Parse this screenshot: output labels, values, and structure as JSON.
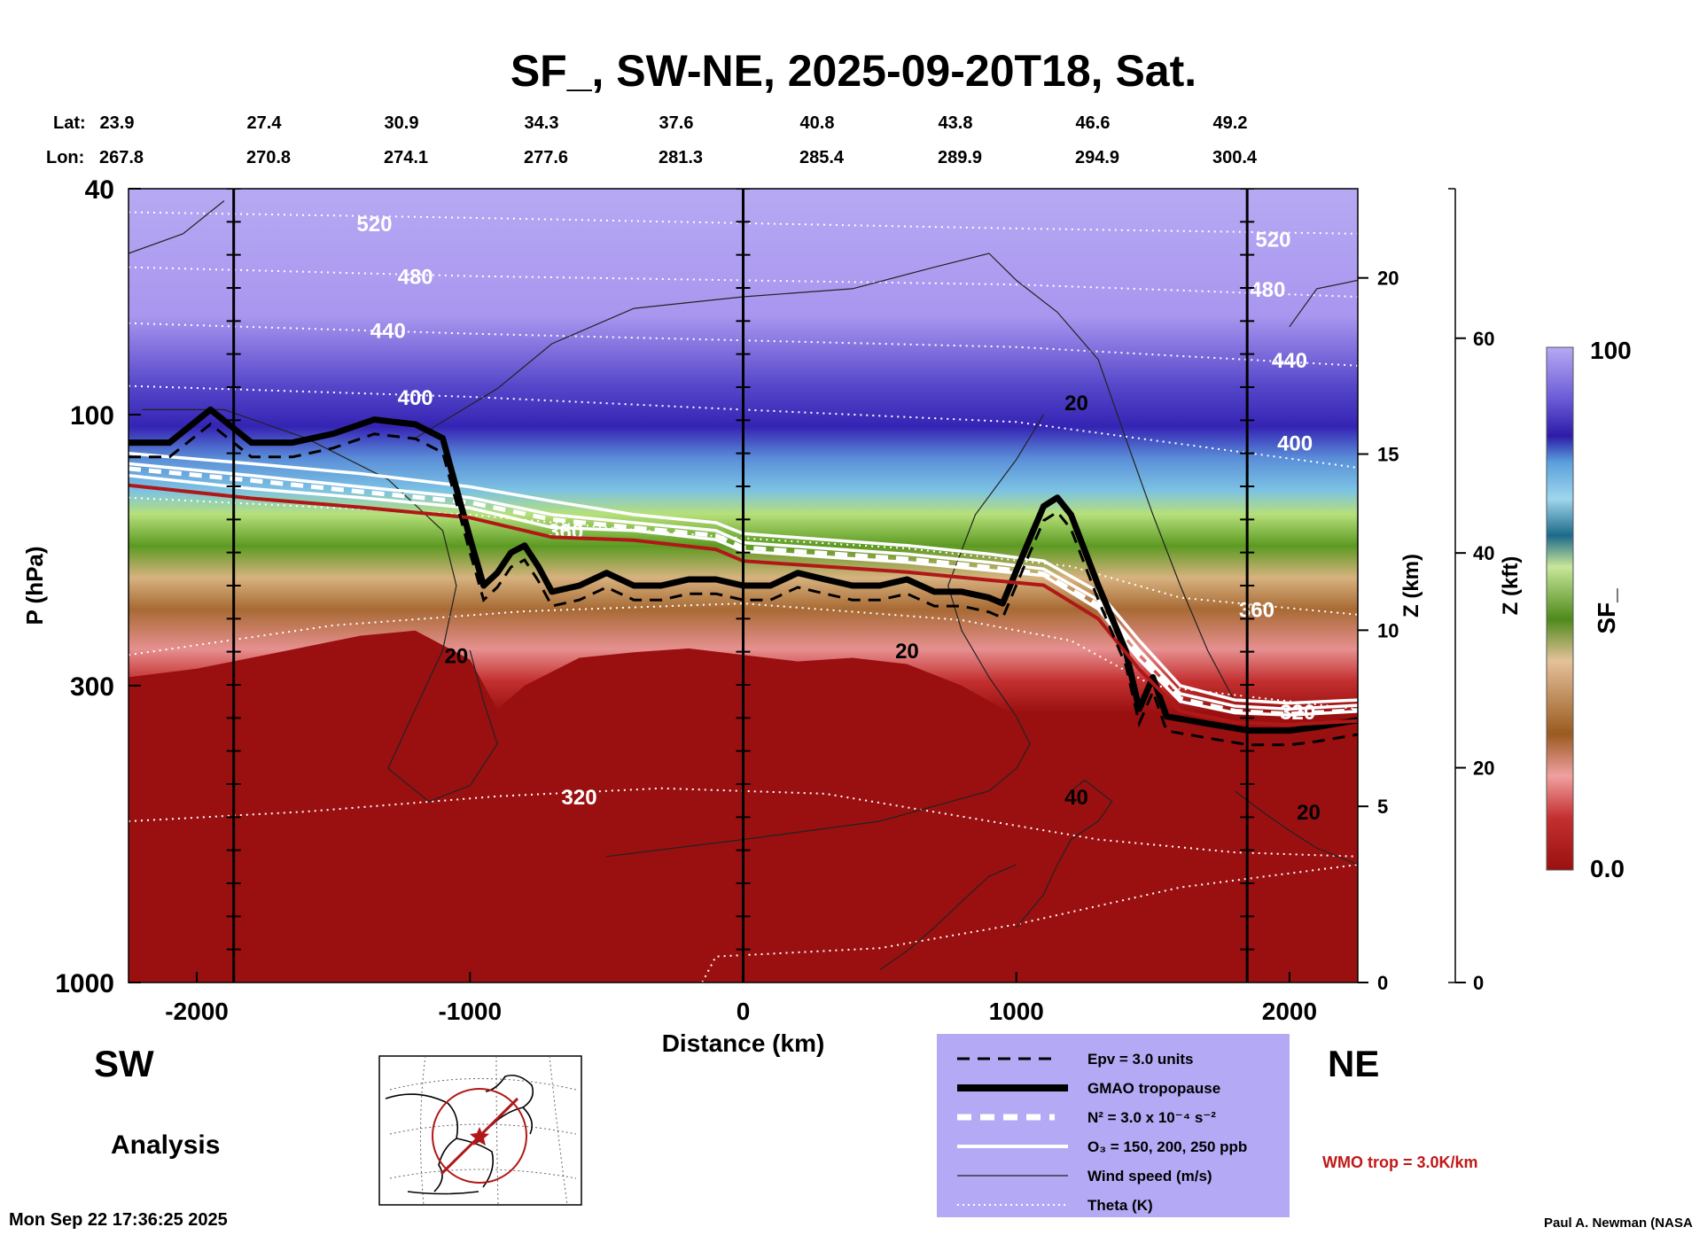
{
  "title": "SF_, SW-NE, 2025-09-20T18, Sat.",
  "lat_label": "Lat:",
  "lon_label": "Lon:",
  "lat_values": [
    "23.9",
    "27.4",
    "30.9",
    "34.3",
    "37.6",
    "40.8",
    "43.8",
    "46.6",
    "49.2"
  ],
  "lon_values": [
    "267.8",
    "270.8",
    "274.1",
    "277.6",
    "281.3",
    "285.4",
    "289.9",
    "294.9",
    "300.4"
  ],
  "dir_left": "SW",
  "dir_right": "NE",
  "analysis_label": "Analysis",
  "timestamp": "Mon Sep 22 17:36:25 2025",
  "credit": "Paul A. Newman (NASA",
  "wmo_note": "WMO trop = 3.0K/km",
  "colorbar": {
    "max_label": "100",
    "min_label": "0.0",
    "title": "SF_"
  },
  "legend": {
    "epv": "Epv = 3.0 units",
    "tropopause": "GMAO tropopause",
    "n2": "N² = 3.0 x 10⁻⁴ s⁻²",
    "o3": "O₃ = 150, 200, 250 ppb",
    "wind": "Wind speed (m/s)",
    "theta": "Theta (K)"
  },
  "colors": {
    "legend_bg": "#b3a9f5",
    "trop_red": "#b01818",
    "wmo_red": "#c01818",
    "surface_red": "#9a1010"
  },
  "chart_data": {
    "type": "heatmap",
    "title": "SF_, SW-NE, 2025-09-20T18, Sat.",
    "xlabel": "Distance (km)",
    "ylabel": "P (hPa)",
    "y2label": "Z (km)",
    "y3label": "Z (kft)",
    "xlim": [
      -2250,
      2250
    ],
    "ylim": [
      1000,
      40
    ],
    "yscale": "log",
    "x_ticks": [
      -2000,
      -1000,
      0,
      1000,
      2000
    ],
    "y_ticks": [
      40,
      100,
      300,
      1000
    ],
    "z_km_ticks": [
      0,
      5,
      10,
      15,
      20
    ],
    "z_kft_ticks": [
      0,
      20,
      40,
      60
    ],
    "colorbar_range": [
      0.0,
      100
    ],
    "theta_labels": [
      "520",
      "480",
      "440",
      "400",
      "360",
      "320"
    ],
    "wind_labels": [
      "20",
      "40"
    ],
    "tropopause": [
      [
        -2250,
        112
      ],
      [
        -2100,
        112
      ],
      [
        -1950,
        98
      ],
      [
        -1800,
        112
      ],
      [
        -1650,
        112
      ],
      [
        -1500,
        108
      ],
      [
        -1350,
        102
      ],
      [
        -1200,
        104
      ],
      [
        -1100,
        110
      ],
      [
        -1000,
        165
      ],
      [
        -950,
        200
      ],
      [
        -900,
        190
      ],
      [
        -850,
        175
      ],
      [
        -800,
        170
      ],
      [
        -750,
        185
      ],
      [
        -700,
        205
      ],
      [
        -600,
        200
      ],
      [
        -500,
        190
      ],
      [
        -400,
        200
      ],
      [
        -300,
        200
      ],
      [
        -200,
        195
      ],
      [
        -100,
        195
      ],
      [
        0,
        200
      ],
      [
        100,
        200
      ],
      [
        200,
        190
      ],
      [
        300,
        195
      ],
      [
        400,
        200
      ],
      [
        500,
        200
      ],
      [
        600,
        195
      ],
      [
        700,
        205
      ],
      [
        800,
        205
      ],
      [
        900,
        210
      ],
      [
        950,
        215
      ],
      [
        1050,
        165
      ],
      [
        1100,
        145
      ],
      [
        1150,
        140
      ],
      [
        1200,
        150
      ],
      [
        1300,
        200
      ],
      [
        1400,
        260
      ],
      [
        1450,
        330
      ],
      [
        1500,
        290
      ],
      [
        1550,
        340
      ],
      [
        1700,
        350
      ],
      [
        1850,
        360
      ],
      [
        2000,
        360
      ],
      [
        2100,
        355
      ],
      [
        2250,
        345
      ]
    ],
    "o3_contours": [
      [
        [
          -2250,
          128
        ],
        [
          -1800,
          135
        ],
        [
          -1400,
          140
        ],
        [
          -1000,
          146
        ],
        [
          -700,
          158
        ],
        [
          -400,
          160
        ],
        [
          -100,
          166
        ],
        [
          0,
          174
        ],
        [
          300,
          178
        ],
        [
          600,
          182
        ],
        [
          900,
          188
        ],
        [
          1100,
          192
        ],
        [
          1300,
          220
        ],
        [
          1450,
          270
        ],
        [
          1600,
          320
        ],
        [
          1800,
          335
        ],
        [
          2000,
          338
        ],
        [
          2250,
          333
        ]
      ],
      [
        [
          -2250,
          122
        ],
        [
          -1800,
          128
        ],
        [
          -1400,
          134
        ],
        [
          -1000,
          140
        ],
        [
          -700,
          150
        ],
        [
          -400,
          155
        ],
        [
          -100,
          160
        ],
        [
          0,
          168
        ],
        [
          300,
          172
        ],
        [
          600,
          176
        ],
        [
          900,
          182
        ],
        [
          1100,
          187
        ],
        [
          1300,
          212
        ],
        [
          1450,
          260
        ],
        [
          1600,
          310
        ],
        [
          1800,
          326
        ],
        [
          2000,
          330
        ],
        [
          2250,
          325
        ]
      ],
      [
        [
          -2250,
          117
        ],
        [
          -1800,
          122
        ],
        [
          -1400,
          127
        ],
        [
          -1000,
          134
        ],
        [
          -700,
          142
        ],
        [
          -400,
          150
        ],
        [
          -100,
          155
        ],
        [
          0,
          162
        ],
        [
          300,
          166
        ],
        [
          600,
          170
        ],
        [
          900,
          176
        ],
        [
          1100,
          181
        ],
        [
          1300,
          205
        ],
        [
          1450,
          250
        ],
        [
          1600,
          300
        ],
        [
          1800,
          318
        ],
        [
          2000,
          322
        ],
        [
          2250,
          318
        ]
      ]
    ]
  }
}
